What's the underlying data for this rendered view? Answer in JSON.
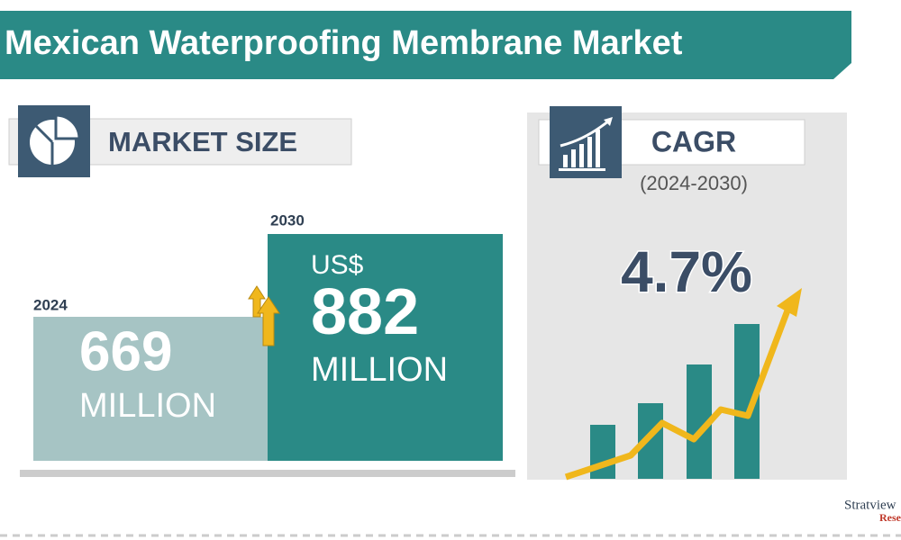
{
  "header": {
    "title": "Mexican Waterproofing Membrane Market"
  },
  "market_size": {
    "label": "MARKET SIZE",
    "start": {
      "year": "2024",
      "value": "669",
      "unit": "MILLION"
    },
    "end": {
      "year": "2030",
      "currency": "US$",
      "value": "882",
      "unit": "MILLION"
    }
  },
  "cagr": {
    "label": "CAGR",
    "period": "(2024-2030)",
    "value": "4.7%"
  },
  "logo": {
    "name": "Stratview",
    "sub": "Rese"
  }
}
